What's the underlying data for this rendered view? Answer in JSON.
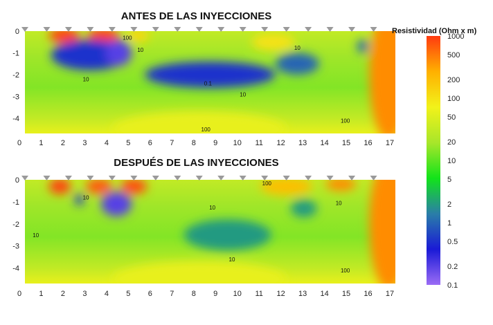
{
  "chart_data": {
    "type": "heatmap",
    "colorbar": {
      "title": "Resistividad (Ohm x m)",
      "scale": "log",
      "range": [
        0.1,
        1000
      ],
      "ticks": [
        {
          "value": 1000,
          "label": "1000"
        },
        {
          "value": 500,
          "label": "500"
        },
        {
          "value": 200,
          "label": "200"
        },
        {
          "value": 100,
          "label": "100"
        },
        {
          "value": 50,
          "label": "50"
        },
        {
          "value": 20,
          "label": "20"
        },
        {
          "value": 10,
          "label": "10"
        },
        {
          "value": 5,
          "label": "5"
        },
        {
          "value": 2,
          "label": "2"
        },
        {
          "value": 1,
          "label": "1"
        },
        {
          "value": 0.5,
          "label": "0.5"
        },
        {
          "value": 0.2,
          "label": "0.2"
        },
        {
          "value": 0.1,
          "label": "0.1"
        }
      ],
      "colors": [
        "#9b6cf5",
        "#1a1ad6",
        "#2a7ea8",
        "#12e31a",
        "#a8e62a",
        "#f2f21a",
        "#ffb000",
        "#ff3a10"
      ]
    },
    "panels": [
      {
        "title": "ANTES DE LAS INYECCIONES",
        "xlim": [
          0,
          17
        ],
        "ylim": [
          -4.7,
          0
        ],
        "x_ticks": [
          "0",
          "1",
          "2",
          "3",
          "4",
          "5",
          "6",
          "7",
          "8",
          "9",
          "10",
          "11",
          "12",
          "13",
          "14",
          "15",
          "16",
          "17"
        ],
        "y_ticks": [
          "0",
          "-1",
          "-2",
          "-3",
          "-4"
        ],
        "electrodes_x": [
          0,
          1,
          2,
          3,
          4,
          5,
          6,
          7,
          8,
          9,
          10,
          11,
          12,
          13,
          14,
          15,
          16
        ],
        "anomalies": [
          {
            "x": 1.8,
            "y": -0.2,
            "rx": 0.7,
            "ry": 0.35,
            "value": 900
          },
          {
            "x": 3.6,
            "y": -0.2,
            "rx": 0.7,
            "ry": 0.35,
            "value": 900
          },
          {
            "x": 5.2,
            "y": -0.2,
            "rx": 0.5,
            "ry": 0.3,
            "value": 120
          },
          {
            "x": 11.4,
            "y": -0.5,
            "rx": 1.0,
            "ry": 0.4,
            "value": 100
          },
          {
            "x": 16.7,
            "y": -2.0,
            "rx": 0.9,
            "ry": 3.0,
            "value": 400
          },
          {
            "x": 3.0,
            "y": -1.1,
            "rx": 1.8,
            "ry": 0.7,
            "value": 0.5
          },
          {
            "x": 4.3,
            "y": -1.0,
            "rx": 0.6,
            "ry": 0.6,
            "value": 0.2
          },
          {
            "x": 8.5,
            "y": -2.0,
            "rx": 3.0,
            "ry": 0.6,
            "value": 0.5
          },
          {
            "x": 12.5,
            "y": -1.5,
            "rx": 1.0,
            "ry": 0.5,
            "value": 1
          },
          {
            "x": 15.5,
            "y": -0.7,
            "rx": 0.25,
            "ry": 0.3,
            "value": 1
          },
          {
            "x": 8.0,
            "y": -4.5,
            "rx": 4.0,
            "ry": 0.8,
            "value": 60
          }
        ],
        "contour_labels": [
          {
            "text": "100",
            "x": 4.7,
            "y": -0.4
          },
          {
            "text": "10",
            "x": 5.3,
            "y": -0.95
          },
          {
            "text": "10",
            "x": 12.5,
            "y": -0.85
          },
          {
            "text": "10",
            "x": 2.8,
            "y": -2.3
          },
          {
            "text": "0.1",
            "x": 8.4,
            "y": -2.5
          },
          {
            "text": "10",
            "x": 10.0,
            "y": -3.0
          },
          {
            "text": "100",
            "x": 8.3,
            "y": -4.6
          },
          {
            "text": "100",
            "x": 14.7,
            "y": -4.2
          }
        ]
      },
      {
        "title": "DESPUÉS DE LAS INYECCIONES",
        "xlim": [
          0,
          17
        ],
        "ylim": [
          -4.7,
          0
        ],
        "x_ticks": [
          "0",
          "1",
          "2",
          "3",
          "4",
          "5",
          "6",
          "7",
          "8",
          "9",
          "10",
          "11",
          "12",
          "13",
          "14",
          "15",
          "16",
          "17"
        ],
        "y_ticks": [
          "0",
          "-1",
          "-2",
          "-3",
          "-4"
        ],
        "electrodes_x": [
          0,
          1,
          2,
          3,
          4,
          5,
          6,
          7,
          8,
          9,
          10,
          11,
          12,
          13,
          14,
          15,
          16
        ],
        "anomalies": [
          {
            "x": 1.6,
            "y": -0.3,
            "rx": 0.5,
            "ry": 0.35,
            "value": 900
          },
          {
            "x": 3.4,
            "y": -0.3,
            "rx": 0.6,
            "ry": 0.35,
            "value": 700
          },
          {
            "x": 5.0,
            "y": -0.3,
            "rx": 0.6,
            "ry": 0.35,
            "value": 800
          },
          {
            "x": 12.0,
            "y": -0.3,
            "rx": 1.2,
            "ry": 0.4,
            "value": 200
          },
          {
            "x": 14.5,
            "y": -0.2,
            "rx": 0.7,
            "ry": 0.3,
            "value": 400
          },
          {
            "x": 16.7,
            "y": -2.0,
            "rx": 0.9,
            "ry": 3.0,
            "value": 400
          },
          {
            "x": 2.5,
            "y": -0.9,
            "rx": 0.2,
            "ry": 0.25,
            "value": 0.5
          },
          {
            "x": 4.2,
            "y": -1.1,
            "rx": 0.7,
            "ry": 0.55,
            "value": 0.2
          },
          {
            "x": 9.3,
            "y": -2.5,
            "rx": 2.0,
            "ry": 0.7,
            "value": 2
          },
          {
            "x": 12.8,
            "y": -1.3,
            "rx": 0.6,
            "ry": 0.4,
            "value": 2
          },
          {
            "x": 8.0,
            "y": -4.5,
            "rx": 4.0,
            "ry": 0.8,
            "value": 60
          }
        ],
        "contour_labels": [
          {
            "text": "10",
            "x": 2.8,
            "y": -0.9
          },
          {
            "text": "100",
            "x": 11.1,
            "y": -0.25
          },
          {
            "text": "10",
            "x": 8.6,
            "y": -1.35
          },
          {
            "text": "10",
            "x": 14.4,
            "y": -1.15
          },
          {
            "text": "10",
            "x": 0.5,
            "y": -2.6
          },
          {
            "text": "10",
            "x": 9.5,
            "y": -3.7
          },
          {
            "text": "100",
            "x": 14.7,
            "y": -4.2
          }
        ]
      }
    ]
  }
}
